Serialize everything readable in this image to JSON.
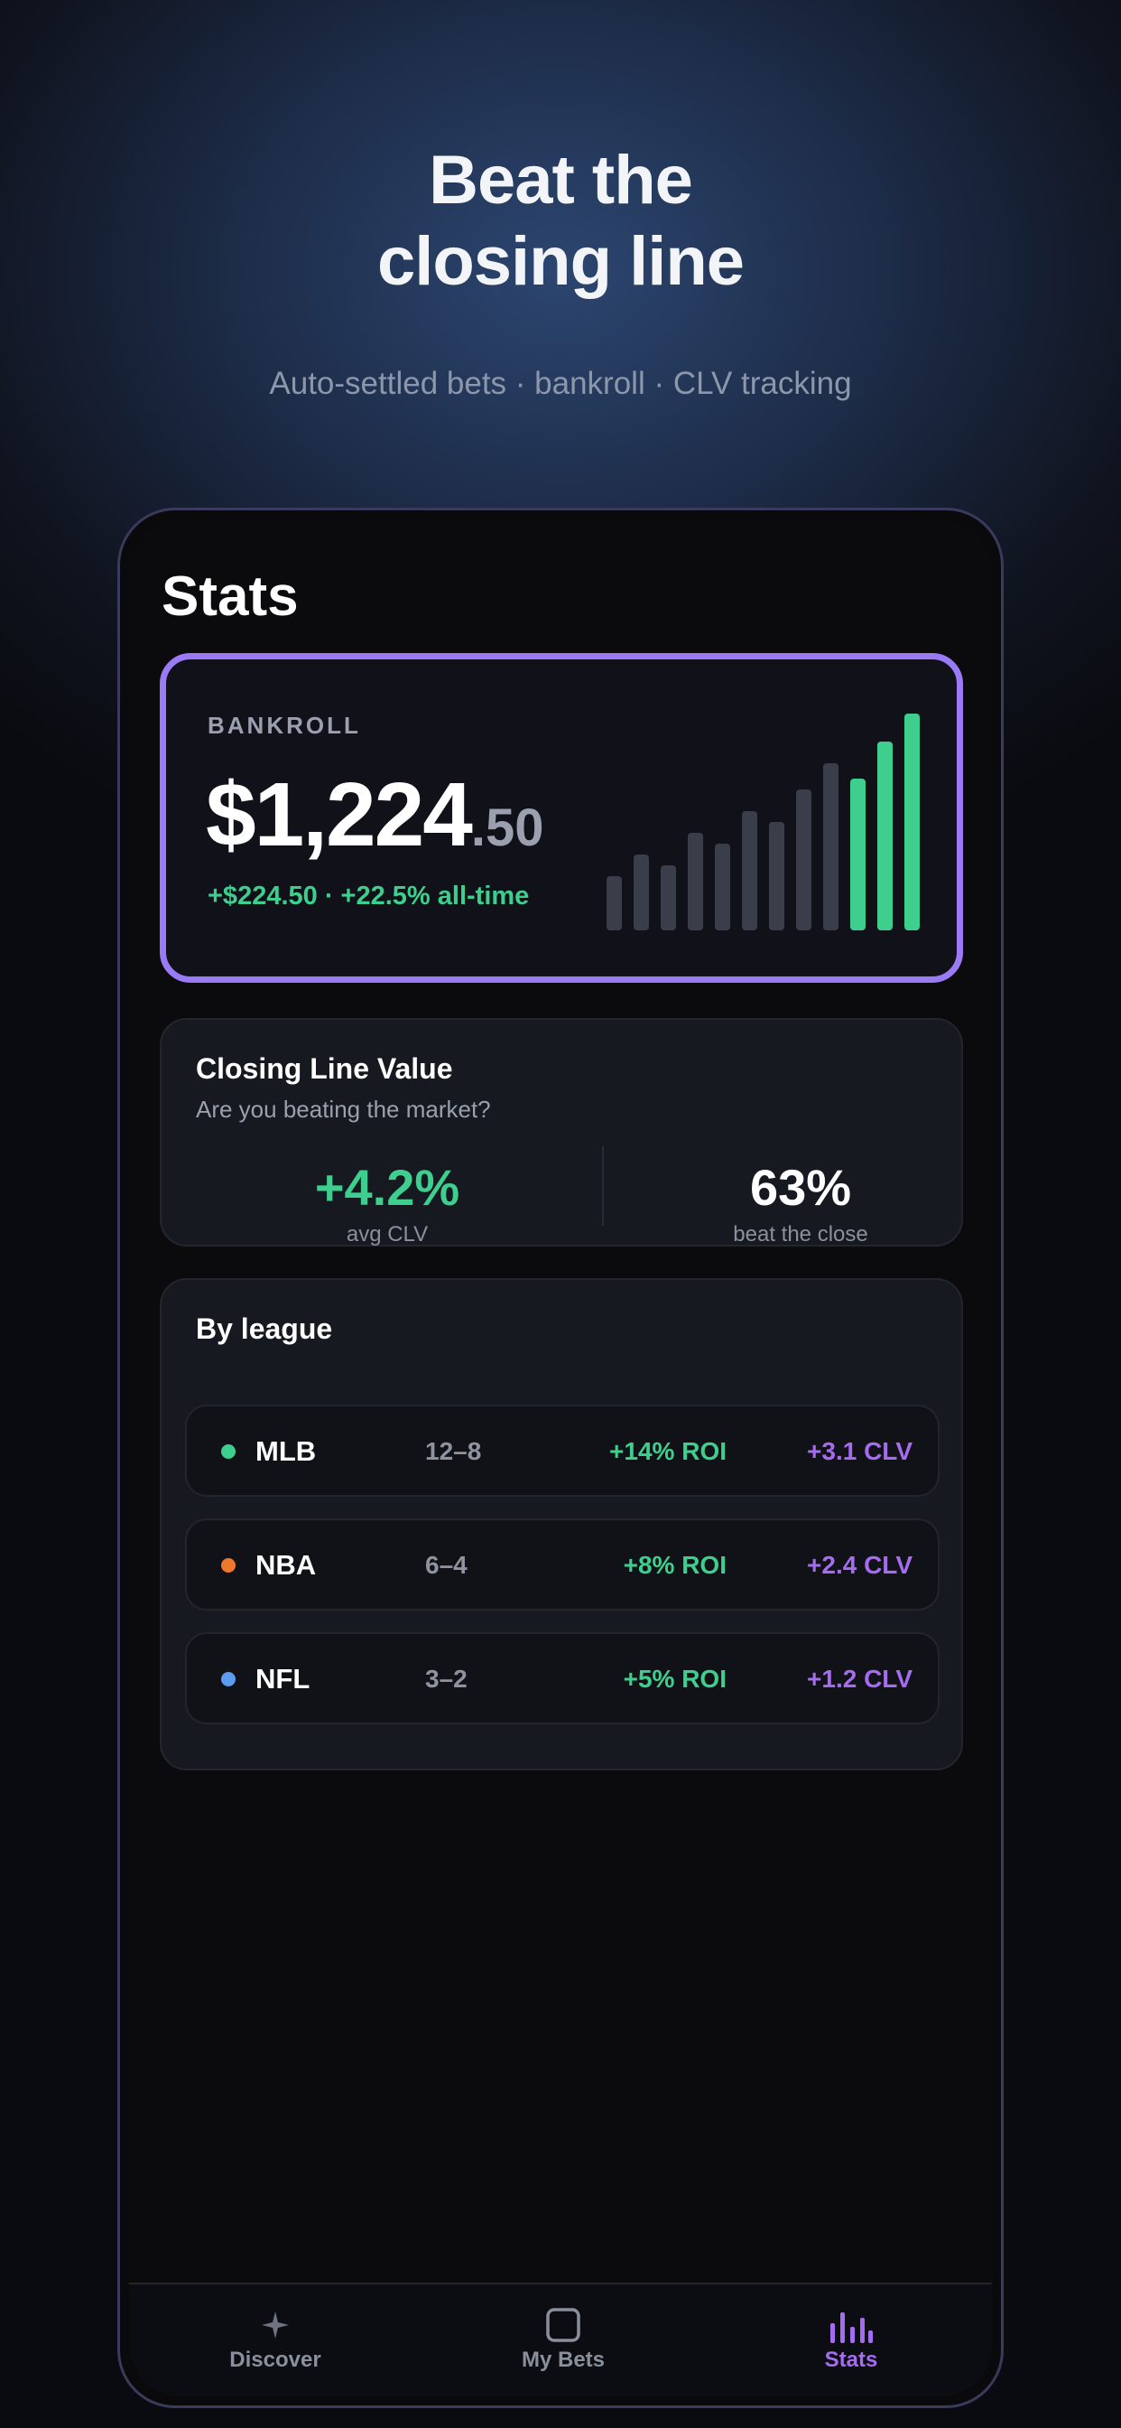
{
  "hero": {
    "title_line1": "Beat the",
    "title_line2": "closing line",
    "subtitle": "Auto-settled bets · bankroll · CLV tracking"
  },
  "page": {
    "title": "Stats"
  },
  "bankroll": {
    "label": "BANKROLL",
    "amount_main": "$1,224",
    "amount_cents": ".50",
    "change": "+$224.50 · +22.5% all-time",
    "sparkline": [
      0.25,
      0.35,
      0.3,
      0.45,
      0.4,
      0.55,
      0.5,
      0.65,
      0.77,
      0.7,
      0.87,
      1.0
    ],
    "sparkline_highlight_from": 9,
    "colors": {
      "accent": "#9b7bf5",
      "positive": "#3ecf8e",
      "muted_bar": "#3a3d4a"
    }
  },
  "clv": {
    "title": "Closing Line Value",
    "subtitle": "Are you beating the market?",
    "avg_value": "+4.2%",
    "avg_label": "avg CLV",
    "beat_value": "63%",
    "beat_label": "beat the close"
  },
  "league": {
    "title": "By league",
    "rows": [
      {
        "name": "MLB",
        "record": "12–8",
        "roi": "+14% ROI",
        "clv": "+3.1 CLV",
        "color": "#3ecf8e"
      },
      {
        "name": "NBA",
        "record": "6–4",
        "roi": "+8% ROI",
        "clv": "+2.4 CLV",
        "color": "#f0772e"
      },
      {
        "name": "NFL",
        "record": "3–2",
        "roi": "+5% ROI",
        "clv": "+1.2 CLV",
        "color": "#5b9bf0"
      }
    ]
  },
  "tabs": [
    {
      "label": "Discover",
      "icon": "sparkle-icon",
      "active": false
    },
    {
      "label": "My Bets",
      "icon": "square-icon",
      "active": false
    },
    {
      "label": "Stats",
      "icon": "bar-chart-icon",
      "active": true
    }
  ],
  "colors": {
    "tab_active": "#a56cf0",
    "tab_inactive": "#8a8f9c"
  }
}
